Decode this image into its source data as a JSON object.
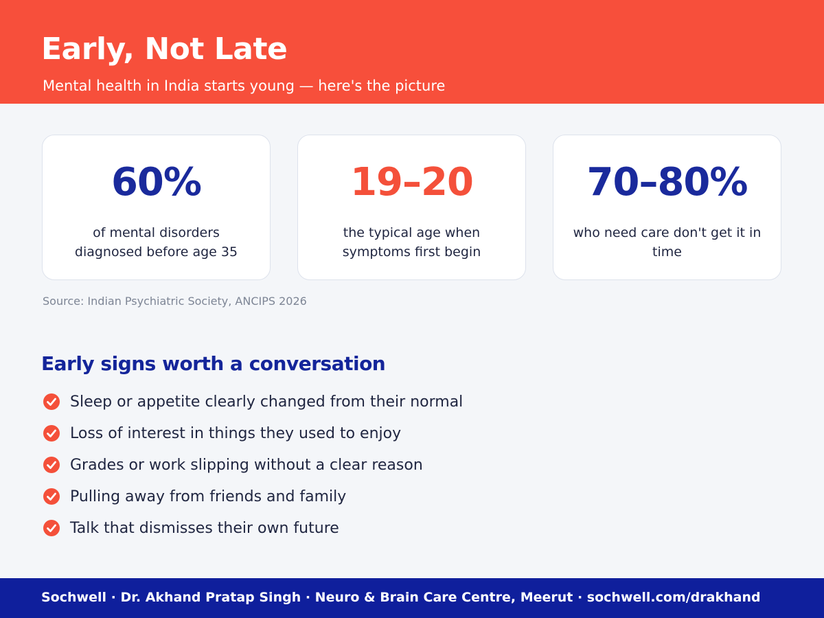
{
  "header": {
    "title": "Early, Not Late",
    "subtitle": "Mental health in India starts young — here's the picture"
  },
  "stats": [
    {
      "value": "60%",
      "label": "of mental disorders diagnosed before age 35",
      "color": "#1a2a9c"
    },
    {
      "value": "19–20",
      "label": "the typical age when symptoms first begin",
      "color": "#f4503a"
    },
    {
      "value": "70–80%",
      "label": "who need care don't get it in time",
      "color": "#1a2a9c"
    }
  ],
  "source": "Source: Indian Psychiatric Society, ANCIPS 2026",
  "signs": {
    "title": "Early signs worth a conversation",
    "items": [
      "Sleep or appetite clearly changed from their normal",
      "Loss of interest in things they used to enjoy",
      "Grades or work slipping without a clear reason",
      "Pulling away from friends and family",
      "Talk that dismisses their own future"
    ]
  },
  "footer": "Sochwell · Dr. Akhand Pratap Singh · Neuro & Brain Care Centre, Meerut · sochwell.com/drakhand"
}
